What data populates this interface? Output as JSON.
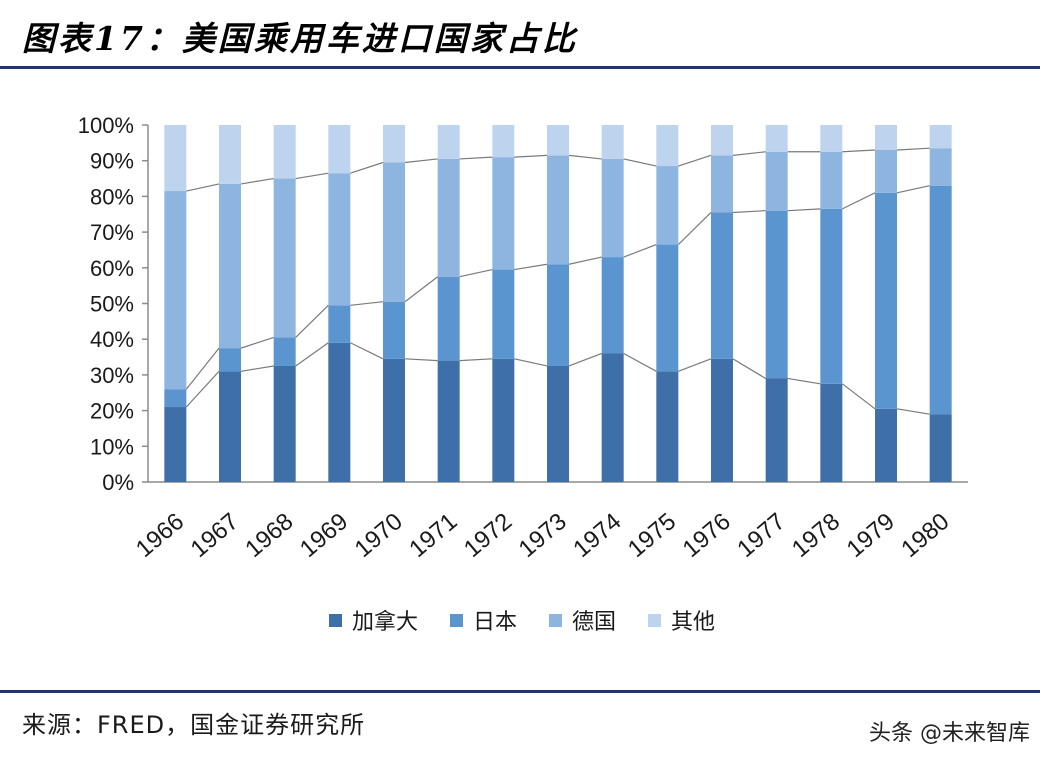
{
  "header": {
    "title": "图表17：美国乘用车进口国家占比"
  },
  "chart_data": {
    "type": "bar",
    "stacked": true,
    "categories": [
      "1966",
      "1967",
      "1968",
      "1969",
      "1970",
      "1971",
      "1972",
      "1973",
      "1974",
      "1975",
      "1976",
      "1977",
      "1978",
      "1979",
      "1980"
    ],
    "series": [
      {
        "name": "加拿大",
        "color": "#3f6fa8",
        "values": [
          21,
          31,
          32.5,
          39,
          34.5,
          34,
          34.5,
          32.5,
          36,
          31,
          34.5,
          29,
          27.5,
          20.5,
          19
        ]
      },
      {
        "name": "日本",
        "color": "#5b95cf",
        "values": [
          5,
          6.5,
          8,
          10.5,
          16,
          23.5,
          25,
          28.5,
          27,
          35.5,
          41,
          47,
          49,
          60.5,
          64
        ]
      },
      {
        "name": "德国",
        "color": "#8db5df",
        "values": [
          55.5,
          46,
          44.5,
          37,
          39,
          33,
          31.5,
          30.5,
          27.5,
          22,
          16,
          16.5,
          16,
          12,
          10.5
        ]
      },
      {
        "name": "其他",
        "color": "#bdd3ee",
        "values": [
          18.5,
          16.5,
          15,
          13.5,
          10.5,
          9.5,
          9,
          8.5,
          9.5,
          11.5,
          8.5,
          7.5,
          7.5,
          7,
          6.5
        ]
      }
    ],
    "y_ticks": [
      "0%",
      "10%",
      "20%",
      "30%",
      "40%",
      "50%",
      "60%",
      "70%",
      "80%",
      "90%",
      "100%"
    ],
    "ylim": [
      0,
      100
    ],
    "gridlines": false,
    "legend_position": "bottom",
    "connector_color": "#7a7a7a"
  },
  "footer": {
    "source": "来源：FRED，国金证券研究所",
    "watermark": "头条 @未来智库"
  }
}
